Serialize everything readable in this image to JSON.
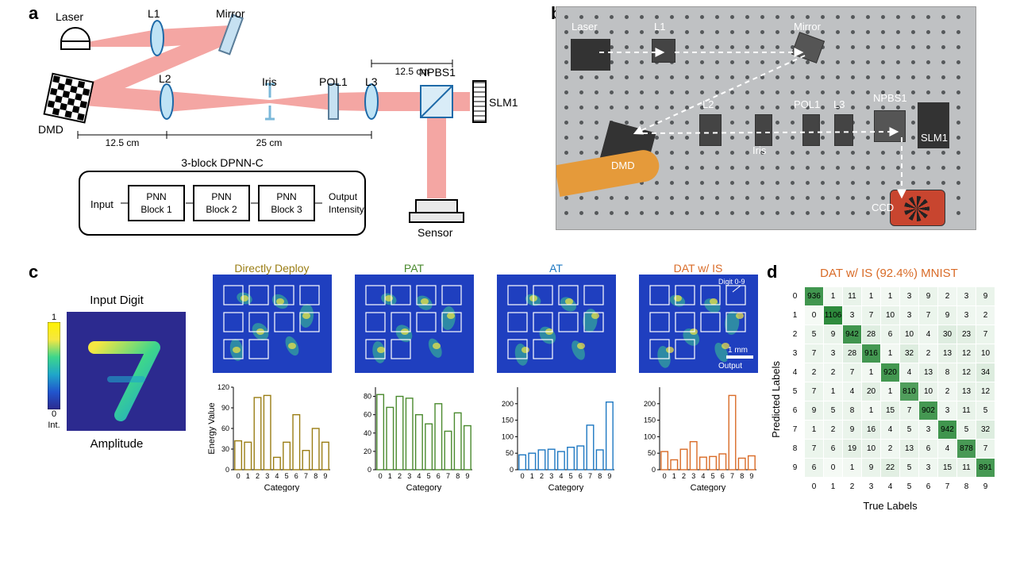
{
  "panel_labels": {
    "a": "a",
    "b": "b",
    "c": "c",
    "d": "d"
  },
  "a": {
    "components": {
      "laser": "Laser",
      "l1": "L1",
      "mirror": "Mirror",
      "dmd": "DMD",
      "l2": "L2",
      "iris": "Iris",
      "pol1": "POL1",
      "l3": "L3",
      "npbs1": "NPBS1",
      "slm1": "SLM1",
      "sensor": "Sensor"
    },
    "dims": {
      "d1": "12.5 cm",
      "d2": "12.5 cm",
      "d3": "25 cm"
    },
    "block_diagram": {
      "title": "3-block DPNN-C",
      "input": "Input",
      "b1": "PNN\nBlock 1",
      "b2": "PNN\nBlock 2",
      "b3": "PNN\nBlock 3",
      "output": "Output\nIntensity"
    },
    "beam_color": "#f4a6a3",
    "lens_fill": "#bfe3f5",
    "lens_stroke": "#1e6aa8",
    "mirror_fill": "#c6e1f2",
    "mirror_stroke": "#5a7d99",
    "npbs_fill": "#d9ecf7"
  },
  "b": {
    "labels": {
      "laser": "Laser",
      "l1": "L1",
      "mirror": "Mirror",
      "l2": "L2",
      "dmd": "DMD",
      "iris": "Iris",
      "pol1": "POL1",
      "l3": "L3",
      "npbs1": "NPBS1",
      "slm1": "SLM1",
      "ccd": "CCD"
    },
    "arrow_color": "#ffffff",
    "ccd_color": "#c8452f",
    "cable_color": "#e59a3a"
  },
  "c": {
    "input_title": "Input Digit",
    "input_caption": "Amplitude",
    "int_label": "Int.",
    "colorbar": {
      "min": 0,
      "max": 1,
      "stops": [
        "#2c2a8f",
        "#2155cd",
        "#1fa6c9",
        "#3dd68c",
        "#f5e742",
        "#fff200"
      ]
    },
    "methods": [
      {
        "name": "Directly Deploy",
        "color": "#9a7d14",
        "values": [
          42,
          40,
          105,
          108,
          18,
          40,
          80,
          28,
          60,
          40
        ],
        "ylim": [
          0,
          120
        ],
        "yticks": [
          0,
          30,
          60,
          90,
          120
        ]
      },
      {
        "name": "PAT",
        "color": "#4a8a2e",
        "values": [
          82,
          68,
          80,
          78,
          60,
          50,
          72,
          42,
          62,
          48
        ],
        "ylim": [
          0,
          90
        ],
        "yticks": [
          0,
          20,
          40,
          60,
          80
        ]
      },
      {
        "name": "AT",
        "color": "#1e78c2",
        "values": [
          45,
          50,
          60,
          62,
          55,
          68,
          72,
          135,
          60,
          205
        ],
        "ylim": [
          0,
          250
        ],
        "yticks": [
          0,
          50,
          100,
          150,
          200
        ]
      },
      {
        "name": "DAT w/ IS",
        "color": "#d96b27",
        "values": [
          55,
          30,
          62,
          85,
          38,
          40,
          48,
          225,
          35,
          42
        ],
        "ylim": [
          0,
          250
        ],
        "yticks": [
          0,
          50,
          100,
          150,
          200
        ]
      }
    ],
    "bar_xlabel": "Category",
    "bar_ylabel": "Energy Value",
    "digit_label": "Digit 0-9",
    "output_label": "Output",
    "scalebar": "1 mm",
    "digit": "7"
  },
  "d": {
    "title": "DAT w/ IS (92.4%) MNIST",
    "title_color": "#d96b27",
    "xlabel": "True Labels",
    "ylabel": "Predicted Labels",
    "cmap_low": "#f5faf5",
    "cmap_high": "#2e8b3d",
    "matrix": [
      [
        936,
        1,
        11,
        1,
        1,
        3,
        9,
        2,
        3,
        9
      ],
      [
        0,
        1106,
        3,
        7,
        10,
        3,
        7,
        9,
        3,
        2
      ],
      [
        5,
        9,
        942,
        28,
        6,
        10,
        4,
        30,
        23,
        7
      ],
      [
        7,
        3,
        28,
        916,
        1,
        32,
        2,
        13,
        12,
        10
      ],
      [
        2,
        2,
        7,
        1,
        920,
        4,
        13,
        8,
        12,
        34
      ],
      [
        7,
        1,
        4,
        20,
        1,
        810,
        10,
        2,
        13,
        12
      ],
      [
        9,
        5,
        8,
        1,
        15,
        7,
        902,
        3,
        11,
        5
      ],
      [
        1,
        2,
        9,
        16,
        4,
        5,
        3,
        942,
        5,
        32
      ],
      [
        7,
        6,
        19,
        10,
        2,
        13,
        6,
        4,
        878,
        7
      ],
      [
        6,
        0,
        1,
        9,
        22,
        5,
        3,
        15,
        11,
        891
      ]
    ]
  }
}
